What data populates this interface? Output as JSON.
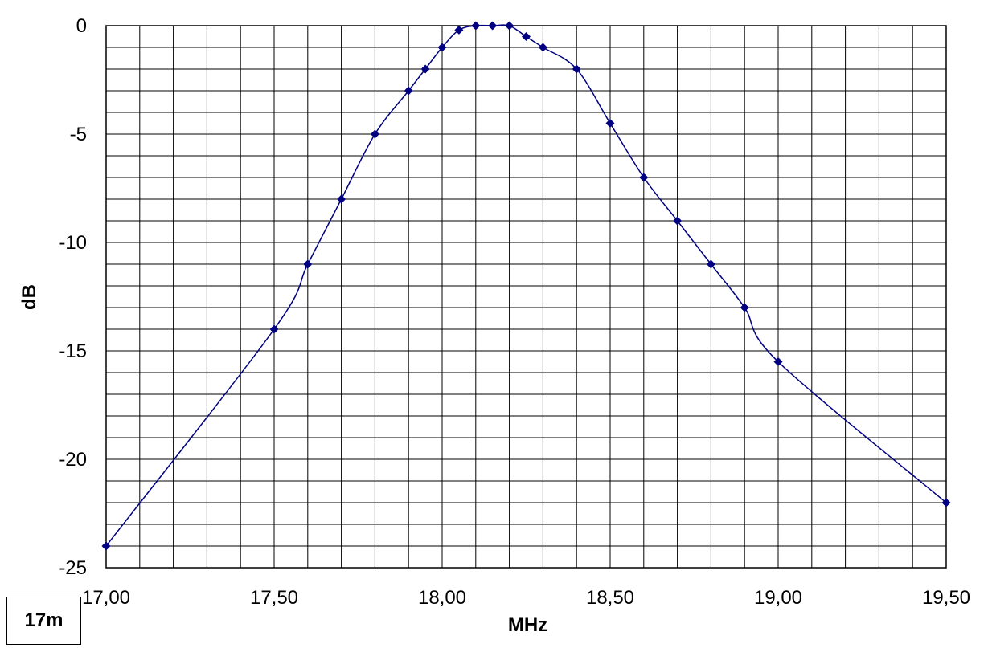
{
  "chart_data": {
    "type": "line",
    "title": "",
    "xlabel": "MHz",
    "ylabel": "dB",
    "xlim": [
      17.0,
      19.5
    ],
    "ylim": [
      -25,
      0
    ],
    "x_ticks": [
      "17,00",
      "17,50",
      "18,00",
      "18,50",
      "19,00",
      "19,50"
    ],
    "y_ticks": [
      "0",
      "-5",
      "-10",
      "-15",
      "-20",
      "-25"
    ],
    "grid": true,
    "legend": "none",
    "line_color": "#000080",
    "series": [
      {
        "x": [
          17.0,
          17.5,
          17.6,
          17.7,
          17.8,
          17.9,
          17.95,
          18.0,
          18.05,
          18.1,
          18.15,
          18.2,
          18.25,
          18.3,
          18.4,
          18.5,
          18.6,
          18.7,
          18.8,
          18.9,
          19.0,
          19.5
        ],
        "y": [
          -24,
          -14,
          -11,
          -8,
          -5,
          -3,
          -2,
          -1,
          -0.2,
          0,
          0,
          0,
          -0.5,
          -1,
          -2,
          -4.5,
          -7,
          -9,
          -11,
          -13,
          -15.5,
          -22
        ]
      }
    ]
  },
  "band_label": "17m"
}
